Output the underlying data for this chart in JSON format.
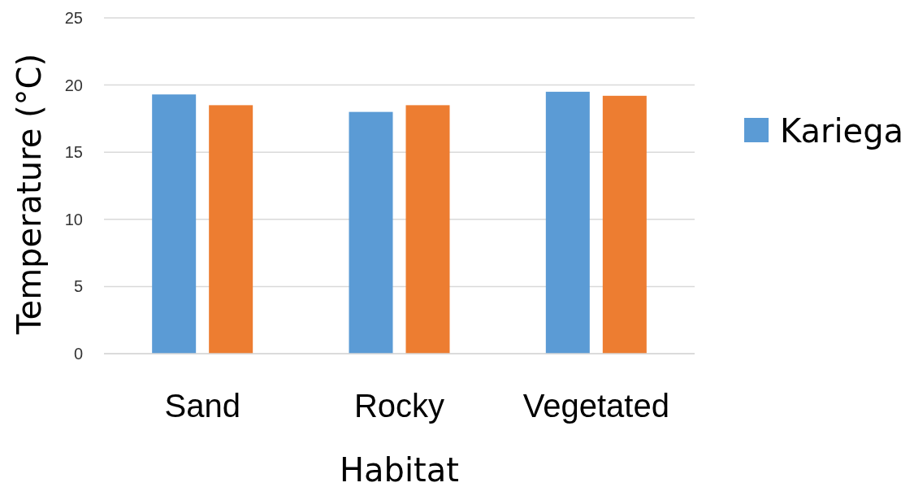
{
  "chart_data": {
    "type": "bar",
    "xlabel": "Habitat",
    "ylabel": "Temperature (°C)",
    "categories": [
      "Sand",
      "Rocky",
      "Vegetated"
    ],
    "series": [
      {
        "name": "Kariega",
        "color": "#5b9bd5",
        "values": [
          19.3,
          18.0,
          19.5
        ]
      },
      {
        "color": "#ed7d31",
        "values": [
          18.5,
          18.5,
          19.2
        ]
      }
    ],
    "ylim": [
      0,
      25
    ],
    "yticks": [
      0,
      5,
      10,
      15,
      20,
      25
    ],
    "grid": "y",
    "legend": "right"
  }
}
